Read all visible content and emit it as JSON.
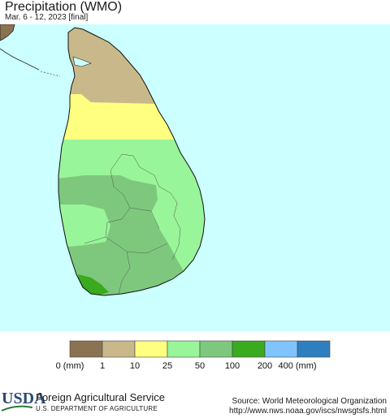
{
  "header": {
    "title": "Precipitation (WMO)",
    "subtitle": "Mar. 6 - 12, 2023 [final]"
  },
  "map": {
    "ocean_color": "#ccffff",
    "neighbor_land_color": "#8b7352",
    "regions": [
      {
        "name": "north-jaffna",
        "category": "1",
        "color": "#c9b98a"
      },
      {
        "name": "north-central-band",
        "category": "10",
        "color": "#ffff80"
      },
      {
        "name": "central-east",
        "category": "25",
        "color": "#99f599"
      },
      {
        "name": "west-hills",
        "category": "50",
        "color": "#7ec87e"
      },
      {
        "name": "south-west-tip",
        "category": "100",
        "color": "#3aaa1e"
      }
    ]
  },
  "legend": {
    "colors": [
      "#8b7352",
      "#c9b98a",
      "#ffff80",
      "#99f599",
      "#7ec87e",
      "#3aaa1e",
      "#80c4ff",
      "#2f7fbf"
    ],
    "labels": [
      "0 (mm)",
      "1",
      "10",
      "25",
      "50",
      "100",
      "200",
      "400 (mm)"
    ]
  },
  "footer": {
    "logo": "USDA",
    "agency": "Foreign Agricultural Service",
    "department": "U.S. DEPARTMENT OF AGRICULTURE",
    "source": "Source: World Meteorological Organization",
    "url": "http://www.nws.noaa.gov/iscs/nwsgtsfs.html"
  }
}
